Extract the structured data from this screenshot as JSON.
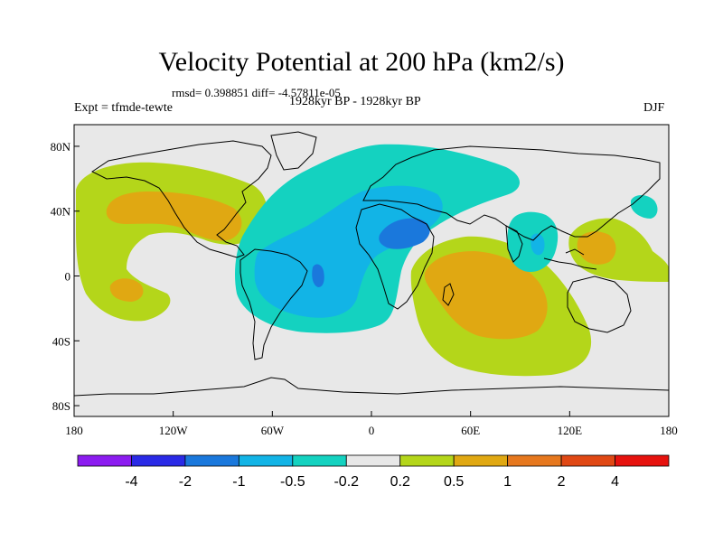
{
  "header": {
    "title": "Velocity Potential at 200 hPa (km2/s)",
    "stats": "rmsd= 0.398851 diff= -4.57811e-05",
    "experiment": "Expt = tfmde-tewte",
    "period": "1928kyr BP - 1928kyr BP",
    "season": "DJF"
  },
  "axes": {
    "lat_ticks": [
      {
        "value": 80,
        "label": "80N"
      },
      {
        "value": 40,
        "label": "40N"
      },
      {
        "value": 0,
        "label": "0"
      },
      {
        "value": -40,
        "label": "40S"
      },
      {
        "value": -80,
        "label": "80S"
      }
    ],
    "lon_ticks": [
      {
        "value": -180,
        "label": "180"
      },
      {
        "value": -120,
        "label": "120W"
      },
      {
        "value": -60,
        "label": "60W"
      },
      {
        "value": 0,
        "label": "0"
      },
      {
        "value": 60,
        "label": "60E"
      },
      {
        "value": 120,
        "label": "120E"
      },
      {
        "value": 180,
        "label": "180"
      }
    ]
  },
  "colorbar": {
    "colors": [
      "#8c1cf0",
      "#2a2ae6",
      "#1a78dc",
      "#12b4e6",
      "#14d2c0",
      "#e8e8e8",
      "#b4d61a",
      "#e0a812",
      "#e6781e",
      "#e04814",
      "#e6120e"
    ],
    "labels": [
      "-4",
      "-2",
      "-1",
      "-0.5",
      "-0.2",
      "0.2",
      "0.5",
      "1",
      "2",
      "4"
    ]
  },
  "colors": {
    "background": "#e8e8e8",
    "positive_low": "#b4d61a",
    "positive_mid": "#e0a812",
    "negative_low": "#14d2c0",
    "negative_mid": "#12b4e6",
    "negative_high": "#1a78dc"
  }
}
